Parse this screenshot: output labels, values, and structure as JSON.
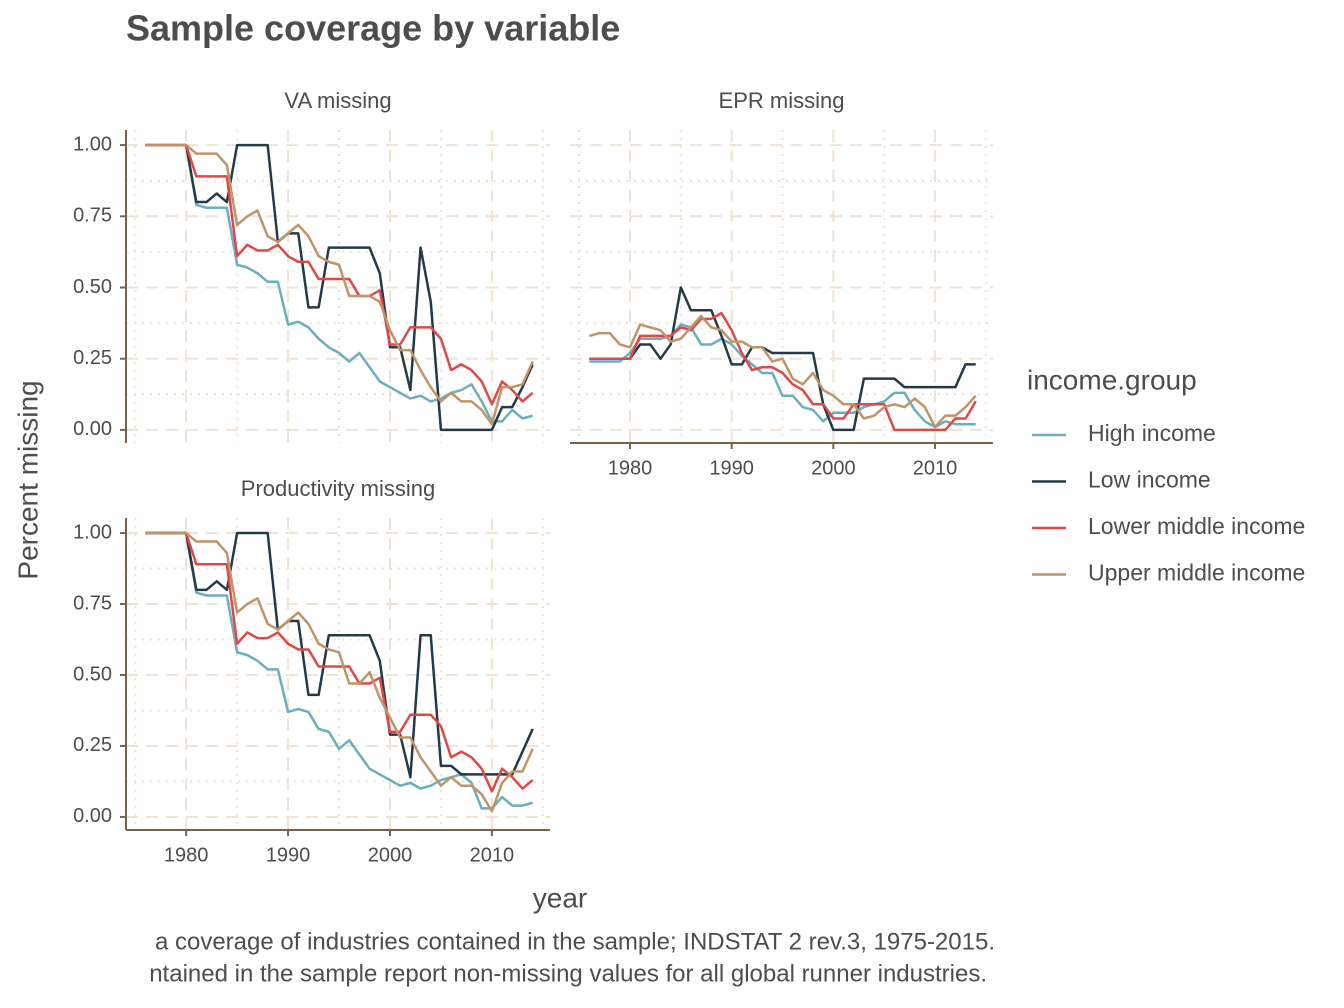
{
  "chart_data": {
    "type": "line",
    "title": "Sample coverage by variable",
    "x_label": "year",
    "y_label": "Percent missing",
    "legend_title": "income.group",
    "caption": [
      "a coverage of industries contained in the sample; INDSTAT 2 rev.3, 1975-2015.",
      "ntained in the sample report non-missing values for all global runner industries."
    ],
    "grid": true,
    "x": [
      1976,
      1977,
      1978,
      1979,
      1980,
      1981,
      1982,
      1983,
      1984,
      1985,
      1986,
      1987,
      1988,
      1989,
      1990,
      1991,
      1992,
      1993,
      1994,
      1995,
      1996,
      1997,
      1998,
      1999,
      2000,
      2001,
      2002,
      2003,
      2004,
      2005,
      2006,
      2007,
      2008,
      2009,
      2010,
      2011,
      2012,
      2013,
      2014
    ],
    "xlim": [
      1974.1,
      2015.7
    ],
    "xticks": [
      1980,
      1990,
      2000,
      2010
    ],
    "ylim": [
      -0.046,
      1.053
    ],
    "yticks": [
      {
        "value": 0,
        "label": "0.00"
      },
      {
        "value": 0.25,
        "label": "0.25"
      },
      {
        "value": 0.5,
        "label": "0.50"
      },
      {
        "value": 0.75,
        "label": "0.75"
      },
      {
        "value": 1,
        "label": "1.00"
      }
    ],
    "series": [
      {
        "name": "High income",
        "color": "#6aafc0"
      },
      {
        "name": "Low income",
        "color": "#243a45"
      },
      {
        "name": "Lower middle income",
        "color": "#e04848"
      },
      {
        "name": "Upper middle income",
        "color": "#bf9468"
      }
    ],
    "facets": [
      {
        "title": "VA missing",
        "series": [
          {
            "values": [
              1,
              1,
              1,
              1,
              1,
              0.79,
              0.78,
              0.78,
              0.78,
              0.58,
              0.57,
              0.55,
              0.52,
              0.52,
              0.37,
              0.38,
              0.36,
              0.32,
              0.29,
              0.27,
              0.24,
              0.27,
              0.22,
              0.17,
              0.15,
              0.13,
              0.11,
              0.12,
              0.1,
              0.11,
              0.13,
              0.14,
              0.16,
              0.1,
              0.03,
              0.03,
              0.07,
              0.04,
              0.05
            ]
          },
          {
            "values": [
              1,
              1,
              1,
              1,
              1,
              0.8,
              0.8,
              0.83,
              0.8,
              1,
              1,
              1,
              1,
              0.66,
              0.69,
              0.69,
              0.43,
              0.43,
              0.64,
              0.64,
              0.64,
              0.64,
              0.64,
              0.55,
              0.29,
              0.29,
              0.14,
              0.64,
              0.45,
              0,
              0,
              0,
              0,
              0,
              0,
              0.08,
              0.08,
              0.15,
              0.23
            ]
          },
          {
            "values": [
              1,
              1,
              1,
              1,
              1,
              0.89,
              0.89,
              0.89,
              0.89,
              0.61,
              0.65,
              0.63,
              0.63,
              0.65,
              0.61,
              0.59,
              0.59,
              0.53,
              0.53,
              0.53,
              0.53,
              0.47,
              0.47,
              0.49,
              0.3,
              0.3,
              0.36,
              0.36,
              0.36,
              0.32,
              0.21,
              0.23,
              0.21,
              0.17,
              0.09,
              0.17,
              0.14,
              0.1,
              0.13
            ]
          },
          {
            "values": [
              1,
              1,
              1,
              1,
              1,
              0.97,
              0.97,
              0.97,
              0.93,
              0.72,
              0.75,
              0.77,
              0.68,
              0.66,
              0.69,
              0.72,
              0.68,
              0.61,
              0.59,
              0.58,
              0.47,
              0.47,
              0.47,
              0.45,
              0.35,
              0.28,
              0.28,
              0.21,
              0.15,
              0.1,
              0.13,
              0.1,
              0.1,
              0.07,
              0.02,
              0.15,
              0.15,
              0.16,
              0.24
            ]
          }
        ]
      },
      {
        "title": "EPR missing",
        "series": [
          {
            "values": [
              0.24,
              0.24,
              0.24,
              0.24,
              0.27,
              0.32,
              0.32,
              0.32,
              0.33,
              0.37,
              0.36,
              0.3,
              0.3,
              0.32,
              0.3,
              0.26,
              0.23,
              0.2,
              0.2,
              0.12,
              0.12,
              0.08,
              0.07,
              0.03,
              0.06,
              0.06,
              0.06,
              0.08,
              0.09,
              0.1,
              0.13,
              0.13,
              0.07,
              0.03,
              0.01,
              0.03,
              0.02,
              0.02,
              0.02
            ]
          },
          {
            "values": [
              0.25,
              0.25,
              0.25,
              0.25,
              0.25,
              0.3,
              0.3,
              0.25,
              0.3,
              0.5,
              0.42,
              0.42,
              0.42,
              0.33,
              0.23,
              0.23,
              0.29,
              0.29,
              0.27,
              0.27,
              0.27,
              0.27,
              0.27,
              0.09,
              0,
              0,
              0,
              0.18,
              0.18,
              0.18,
              0.18,
              0.15,
              0.15,
              0.15,
              0.15,
              0.15,
              0.15,
              0.23,
              0.23
            ]
          },
          {
            "values": [
              0.25,
              0.25,
              0.25,
              0.25,
              0.25,
              0.33,
              0.33,
              0.33,
              0.33,
              0.36,
              0.35,
              0.39,
              0.39,
              0.41,
              0.35,
              0.27,
              0.21,
              0.22,
              0.22,
              0.2,
              0.16,
              0.14,
              0.09,
              0.09,
              0.04,
              0.04,
              0.09,
              0.09,
              0.09,
              0.09,
              0,
              0,
              0,
              0,
              0,
              0,
              0.04,
              0.04,
              0.1
            ]
          },
          {
            "values": [
              0.33,
              0.34,
              0.34,
              0.3,
              0.29,
              0.37,
              0.36,
              0.35,
              0.31,
              0.32,
              0.36,
              0.4,
              0.36,
              0.35,
              0.31,
              0.31,
              0.29,
              0.29,
              0.24,
              0.25,
              0.18,
              0.16,
              0.2,
              0.14,
              0.12,
              0.09,
              0.09,
              0.04,
              0.05,
              0.08,
              0.09,
              0.08,
              0.11,
              0.08,
              0.01,
              0.05,
              0.05,
              0.08,
              0.12
            ]
          }
        ]
      },
      {
        "title": "Productivity missing",
        "series": [
          {
            "values": [
              1,
              1,
              1,
              1,
              1,
              0.79,
              0.78,
              0.78,
              0.78,
              0.58,
              0.57,
              0.55,
              0.52,
              0.52,
              0.37,
              0.38,
              0.37,
              0.31,
              0.3,
              0.24,
              0.27,
              0.22,
              0.17,
              0.15,
              0.13,
              0.11,
              0.12,
              0.1,
              0.11,
              0.13,
              0.14,
              0.15,
              0.12,
              0.03,
              0.03,
              0.07,
              0.04,
              0.04,
              0.05
            ]
          },
          {
            "values": [
              1,
              1,
              1,
              1,
              1,
              0.8,
              0.8,
              0.83,
              0.8,
              1,
              1,
              1,
              1,
              0.66,
              0.69,
              0.69,
              0.43,
              0.43,
              0.64,
              0.64,
              0.64,
              0.64,
              0.64,
              0.55,
              0.29,
              0.29,
              0.14,
              0.64,
              0.64,
              0.18,
              0.18,
              0.15,
              0.15,
              0.15,
              0.15,
              0.15,
              0.15,
              0.23,
              0.31
            ]
          },
          {
            "values": [
              1,
              1,
              1,
              1,
              1,
              0.89,
              0.89,
              0.89,
              0.89,
              0.61,
              0.65,
              0.63,
              0.63,
              0.65,
              0.61,
              0.59,
              0.59,
              0.53,
              0.53,
              0.53,
              0.53,
              0.47,
              0.47,
              0.49,
              0.3,
              0.3,
              0.36,
              0.36,
              0.36,
              0.32,
              0.21,
              0.23,
              0.21,
              0.17,
              0.09,
              0.17,
              0.14,
              0.1,
              0.13
            ]
          },
          {
            "values": [
              1,
              1,
              1,
              1,
              1,
              0.97,
              0.97,
              0.97,
              0.93,
              0.72,
              0.75,
              0.77,
              0.68,
              0.66,
              0.69,
              0.72,
              0.68,
              0.61,
              0.59,
              0.58,
              0.47,
              0.47,
              0.51,
              0.42,
              0.35,
              0.28,
              0.28,
              0.21,
              0.16,
              0.11,
              0.14,
              0.11,
              0.11,
              0.08,
              0.02,
              0.12,
              0.16,
              0.16,
              0.24
            ]
          }
        ]
      }
    ]
  }
}
